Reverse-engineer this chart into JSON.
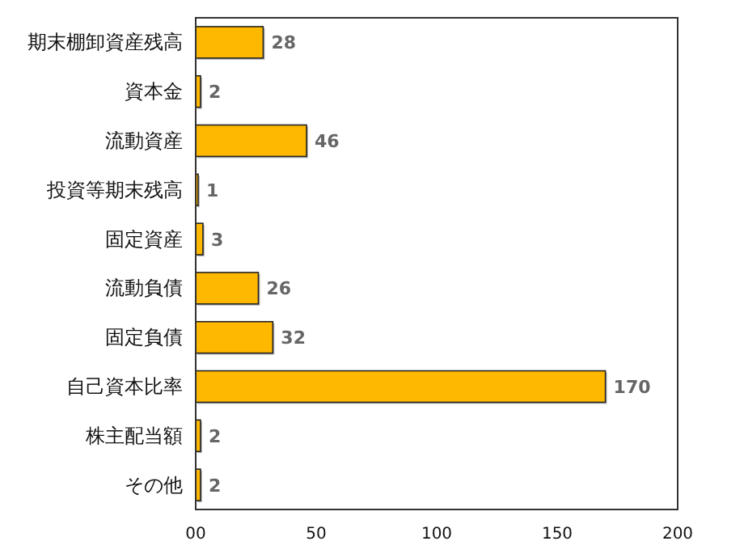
{
  "chart_data": {
    "type": "bar",
    "orientation": "horizontal",
    "categories": [
      "期末棚卸資産残高",
      "資本金",
      "流動資産",
      "投資等期末残高",
      "固定資産",
      "流動負債",
      "固定負債",
      "自己資本比率",
      "株主配当額",
      "その他"
    ],
    "values": [
      28,
      2,
      46,
      1,
      3,
      26,
      32,
      170,
      2,
      2
    ],
    "color": "#ffb800",
    "xlim": [
      0,
      200
    ],
    "xticks": [
      {
        "value": 0,
        "label": "00"
      },
      50,
      100,
      150,
      200
    ],
    "data_labels": true
  }
}
